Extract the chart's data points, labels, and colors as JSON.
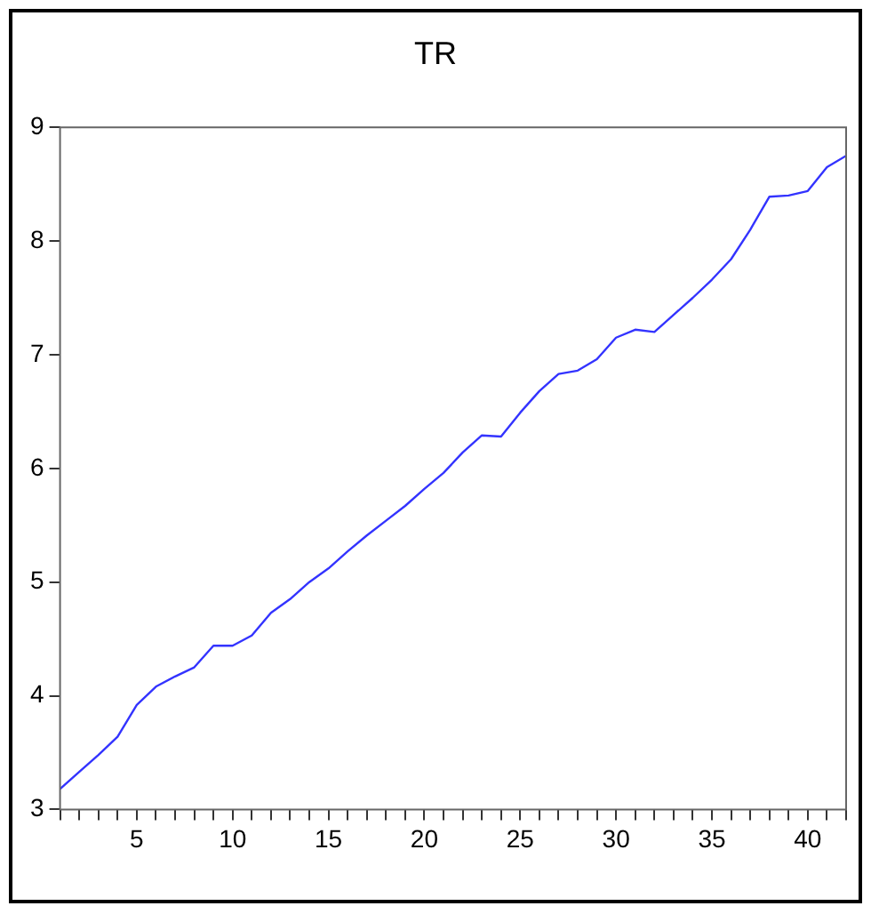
{
  "chart_data": {
    "type": "line",
    "title": "TR",
    "x": [
      1,
      2,
      3,
      4,
      5,
      6,
      7,
      8,
      9,
      10,
      11,
      12,
      13,
      14,
      15,
      16,
      17,
      18,
      19,
      20,
      21,
      22,
      23,
      24,
      25,
      26,
      27,
      28,
      29,
      30,
      31,
      32,
      33,
      34,
      35,
      36,
      37,
      38,
      39,
      40,
      41,
      42
    ],
    "series": [
      {
        "color": "#3333ff",
        "values": [
          3.18,
          3.33,
          3.48,
          3.64,
          3.92,
          4.08,
          4.17,
          4.25,
          4.44,
          4.44,
          4.53,
          4.73,
          4.85,
          5.0,
          5.12,
          5.27,
          5.41,
          5.54,
          5.67,
          5.82,
          5.96,
          6.14,
          6.29,
          6.28,
          6.49,
          6.68,
          6.83,
          6.86,
          6.96,
          7.15,
          7.22,
          7.2,
          7.35,
          7.5,
          7.66,
          7.84,
          8.1,
          8.39,
          8.4,
          8.44,
          8.65,
          8.75
        ]
      }
    ],
    "xlim": [
      1,
      42
    ],
    "xticks": [
      {
        "value": 1,
        "label": null
      },
      {
        "value": 2,
        "label": null
      },
      {
        "value": 3,
        "label": null
      },
      {
        "value": 4,
        "label": null
      },
      5,
      {
        "value": 6,
        "label": null
      },
      {
        "value": 7,
        "label": null
      },
      {
        "value": 8,
        "label": null
      },
      {
        "value": 9,
        "label": null
      },
      10,
      {
        "value": 11,
        "label": null
      },
      {
        "value": 12,
        "label": null
      },
      {
        "value": 13,
        "label": null
      },
      {
        "value": 14,
        "label": null
      },
      15,
      {
        "value": 16,
        "label": null
      },
      {
        "value": 17,
        "label": null
      },
      {
        "value": 18,
        "label": null
      },
      {
        "value": 19,
        "label": null
      },
      20,
      {
        "value": 21,
        "label": null
      },
      {
        "value": 22,
        "label": null
      },
      {
        "value": 23,
        "label": null
      },
      {
        "value": 24,
        "label": null
      },
      25,
      {
        "value": 26,
        "label": null
      },
      {
        "value": 27,
        "label": null
      },
      {
        "value": 28,
        "label": null
      },
      {
        "value": 29,
        "label": null
      },
      30,
      {
        "value": 31,
        "label": null
      },
      {
        "value": 32,
        "label": null
      },
      {
        "value": 33,
        "label": null
      },
      {
        "value": 34,
        "label": null
      },
      35,
      {
        "value": 36,
        "label": null
      },
      {
        "value": 37,
        "label": null
      },
      {
        "value": 38,
        "label": null
      },
      {
        "value": 39,
        "label": null
      },
      40,
      {
        "value": 41,
        "label": null
      },
      {
        "value": 42,
        "label": null
      }
    ],
    "ylim": [
      3,
      9
    ],
    "yticks": [
      3,
      4,
      5,
      6,
      7,
      8,
      9
    ],
    "grid": false,
    "legend": false,
    "marker": "none",
    "line_style": "solid"
  }
}
